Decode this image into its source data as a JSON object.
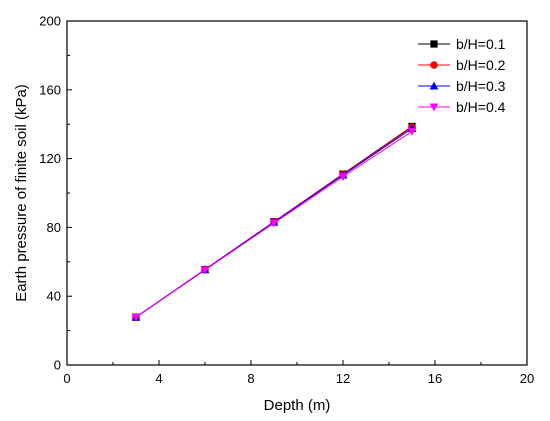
{
  "chart_data": {
    "type": "line",
    "xlabel": "Depth (m)",
    "ylabel": "Earth pressure of finite soil (kPa)",
    "xlim": [
      0,
      20
    ],
    "ylim": [
      0,
      200
    ],
    "xticks": [
      0,
      4,
      8,
      12,
      16,
      20
    ],
    "yticks": [
      0,
      40,
      80,
      120,
      160,
      200
    ],
    "grid": false,
    "legend_position": "top-right",
    "x": [
      3,
      6,
      9,
      12,
      15
    ],
    "series": [
      {
        "name": "b/H=0.1",
        "values": [
          27.8,
          55.5,
          83.3,
          111.0,
          138.7
        ],
        "color": "#000000",
        "marker": "square"
      },
      {
        "name": "b/H=0.2",
        "values": [
          27.8,
          55.5,
          83.2,
          110.8,
          138.3
        ],
        "color": "#ff0000",
        "marker": "circle"
      },
      {
        "name": "b/H=0.3",
        "values": [
          27.8,
          55.4,
          83.0,
          110.4,
          137.5
        ],
        "color": "#0000ff",
        "marker": "triangle-up"
      },
      {
        "name": "b/H=0.4",
        "values": [
          27.7,
          55.2,
          82.5,
          109.5,
          135.8
        ],
        "color": "#ff00ff",
        "marker": "triangle-down"
      }
    ]
  }
}
